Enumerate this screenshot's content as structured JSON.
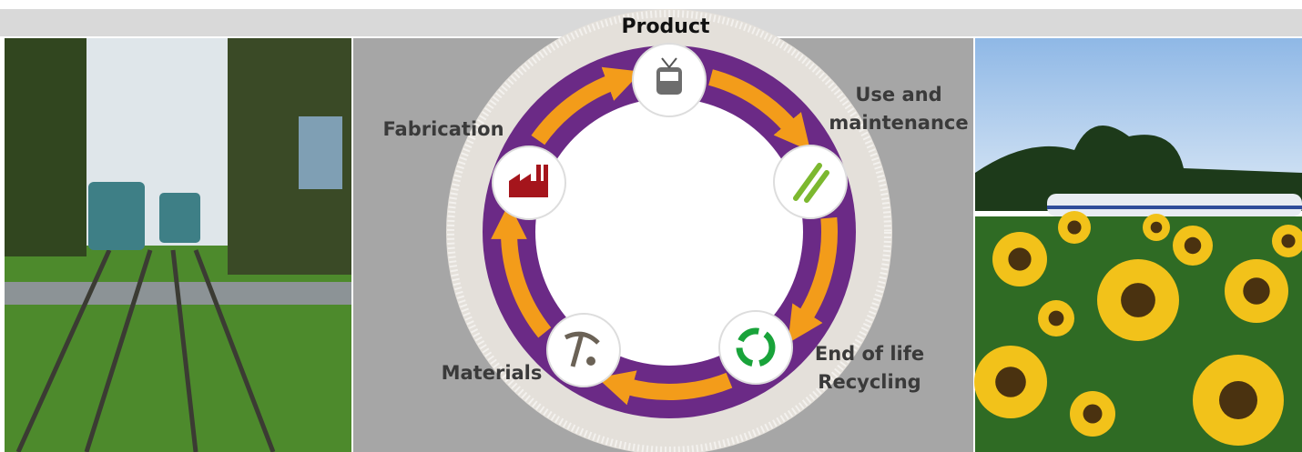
{
  "diagram": {
    "stages": [
      {
        "lines": [
          "Product"
        ]
      },
      {
        "lines": [
          "Use and",
          "maintenance"
        ]
      },
      {
        "lines": [
          "End of life",
          "Recycling"
        ]
      },
      {
        "lines": [
          "Materials"
        ]
      },
      {
        "lines": [
          "Fabrication"
        ]
      }
    ]
  }
}
